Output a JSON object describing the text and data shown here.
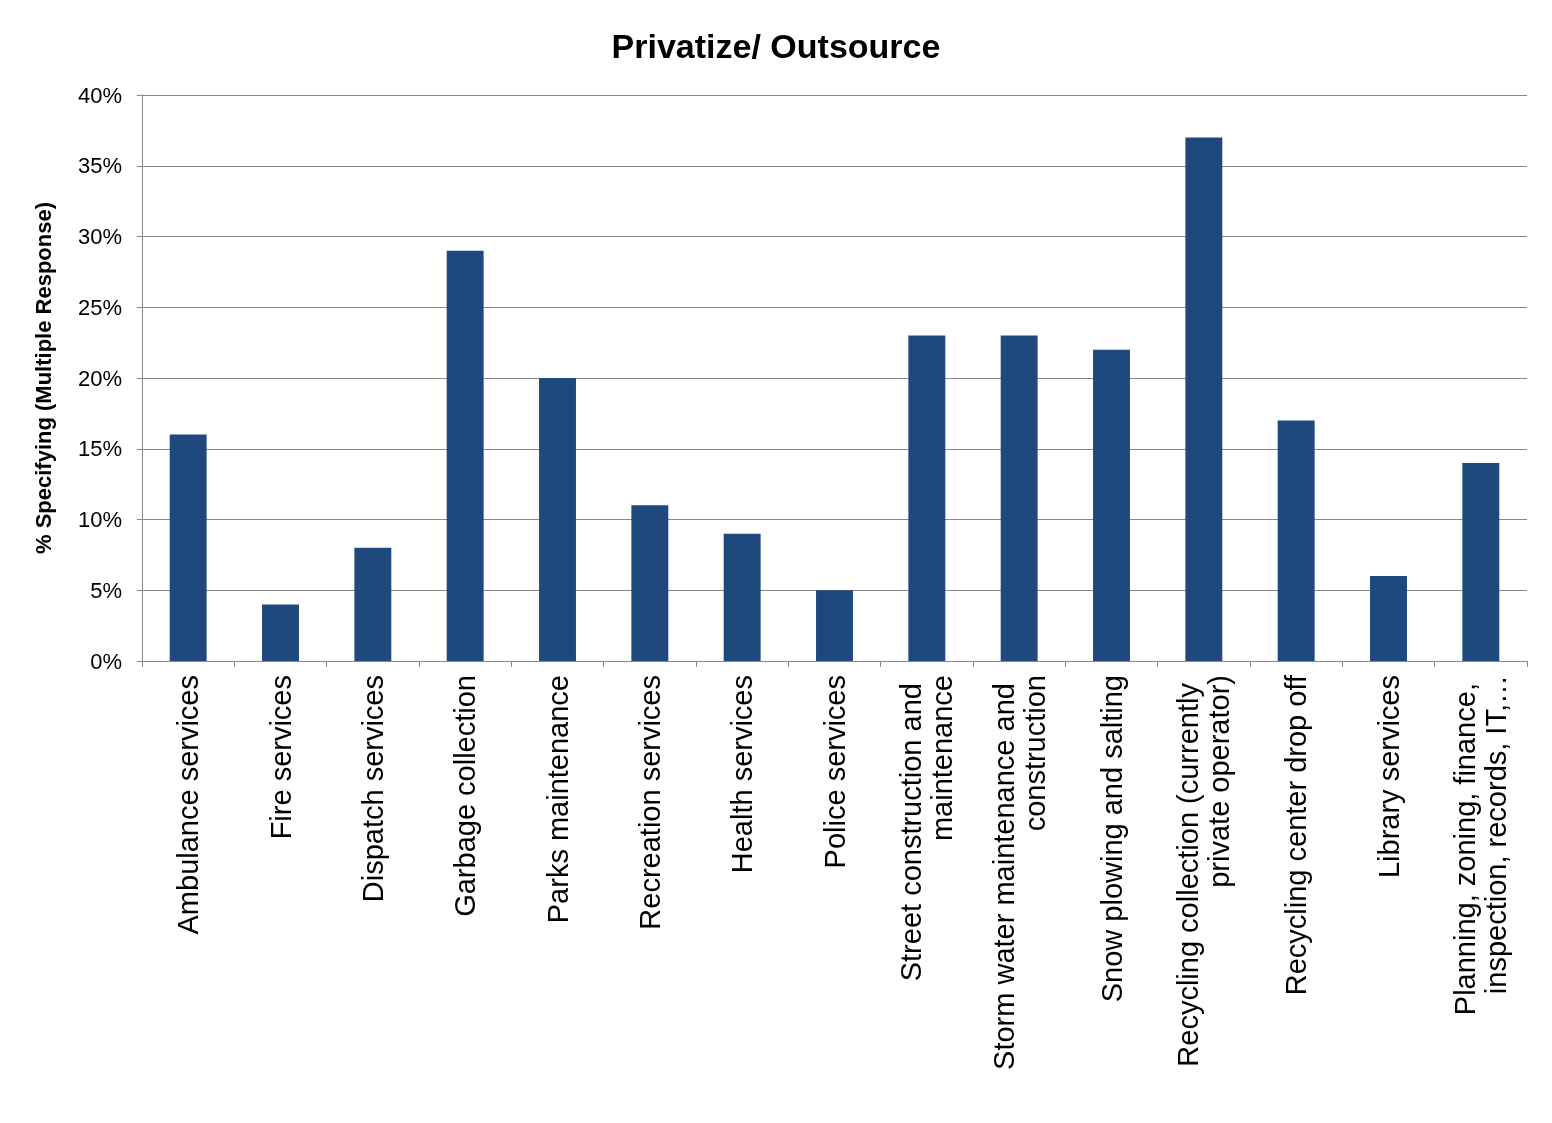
{
  "chart_data": {
    "type": "bar",
    "title": "Privatize/ Outsource",
    "ylabel": "% Specifying (Multiple Response)",
    "categories": [
      "Ambulance services",
      "Fire services",
      "Dispatch services",
      "Garbage collection",
      "Parks maintenance",
      "Recreation services",
      "Health services",
      "Police services",
      "Street construction and maintenance",
      "Storm water maintenance and construction",
      "Snow plowing and salting",
      "Recycling collection (currently private operator)",
      "Recycling center drop off",
      "Library services",
      "Planning, zoning, finance, inspection, records, IT,…"
    ],
    "values": [
      16,
      4,
      8,
      29,
      20,
      11,
      9,
      5,
      23,
      23,
      22,
      37,
      17,
      6,
      14
    ],
    "color": "#1f497d",
    "ylim": [
      0,
      40
    ],
    "yticks": [
      {
        "value": 0,
        "label": "0%"
      },
      {
        "value": 5,
        "label": "5%"
      },
      {
        "value": 10,
        "label": "10%"
      },
      {
        "value": 15,
        "label": "15%"
      },
      {
        "value": 20,
        "label": "20%"
      },
      {
        "value": 25,
        "label": "25%"
      },
      {
        "value": 30,
        "label": "30%"
      },
      {
        "value": 35,
        "label": "35%"
      },
      {
        "value": 40,
        "label": "40%"
      }
    ],
    "grid": true
  }
}
